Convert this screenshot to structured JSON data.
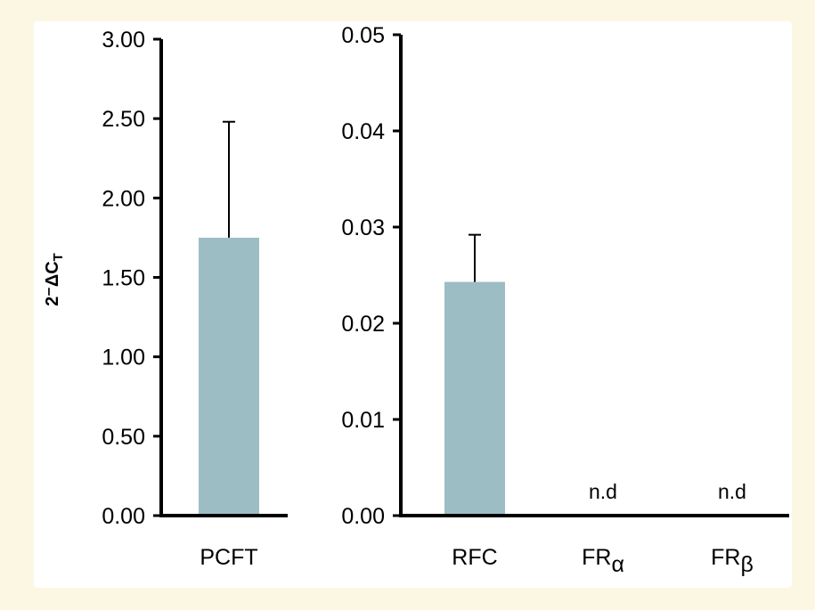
{
  "chart_data": [
    {
      "type": "bar",
      "ylabel": "2⁻ΔC",
      "ylabel_sub": "T",
      "categories": [
        "PCFT"
      ],
      "values": [
        1.75
      ],
      "error_upper": [
        2.48
      ],
      "ylim": [
        0,
        3.0
      ],
      "yticks": [
        "0.00",
        "0.50",
        "1.00",
        "1.50",
        "2.00",
        "2.50",
        "3.00"
      ],
      "bar_color": "#9dbdc5",
      "grid": false
    },
    {
      "type": "bar",
      "categories": [
        "RFC",
        "FR",
        "FR"
      ],
      "category_subscripts": [
        "",
        "α",
        "β"
      ],
      "values": [
        0.0243,
        null,
        null
      ],
      "error_upper": [
        0.0292,
        null,
        null
      ],
      "annotations": [
        "",
        "n.d",
        "n.d"
      ],
      "ylim": [
        0,
        0.05
      ],
      "yticks": [
        "0.00",
        "0.01",
        "0.02",
        "0.03",
        "0.04",
        "0.05"
      ],
      "bar_color": "#9dbdc5",
      "grid": false
    }
  ],
  "colors": {
    "background": "#fbf7e3",
    "panel": "#ffffff",
    "bar": "#9dbdc5",
    "axis": "#000000"
  }
}
